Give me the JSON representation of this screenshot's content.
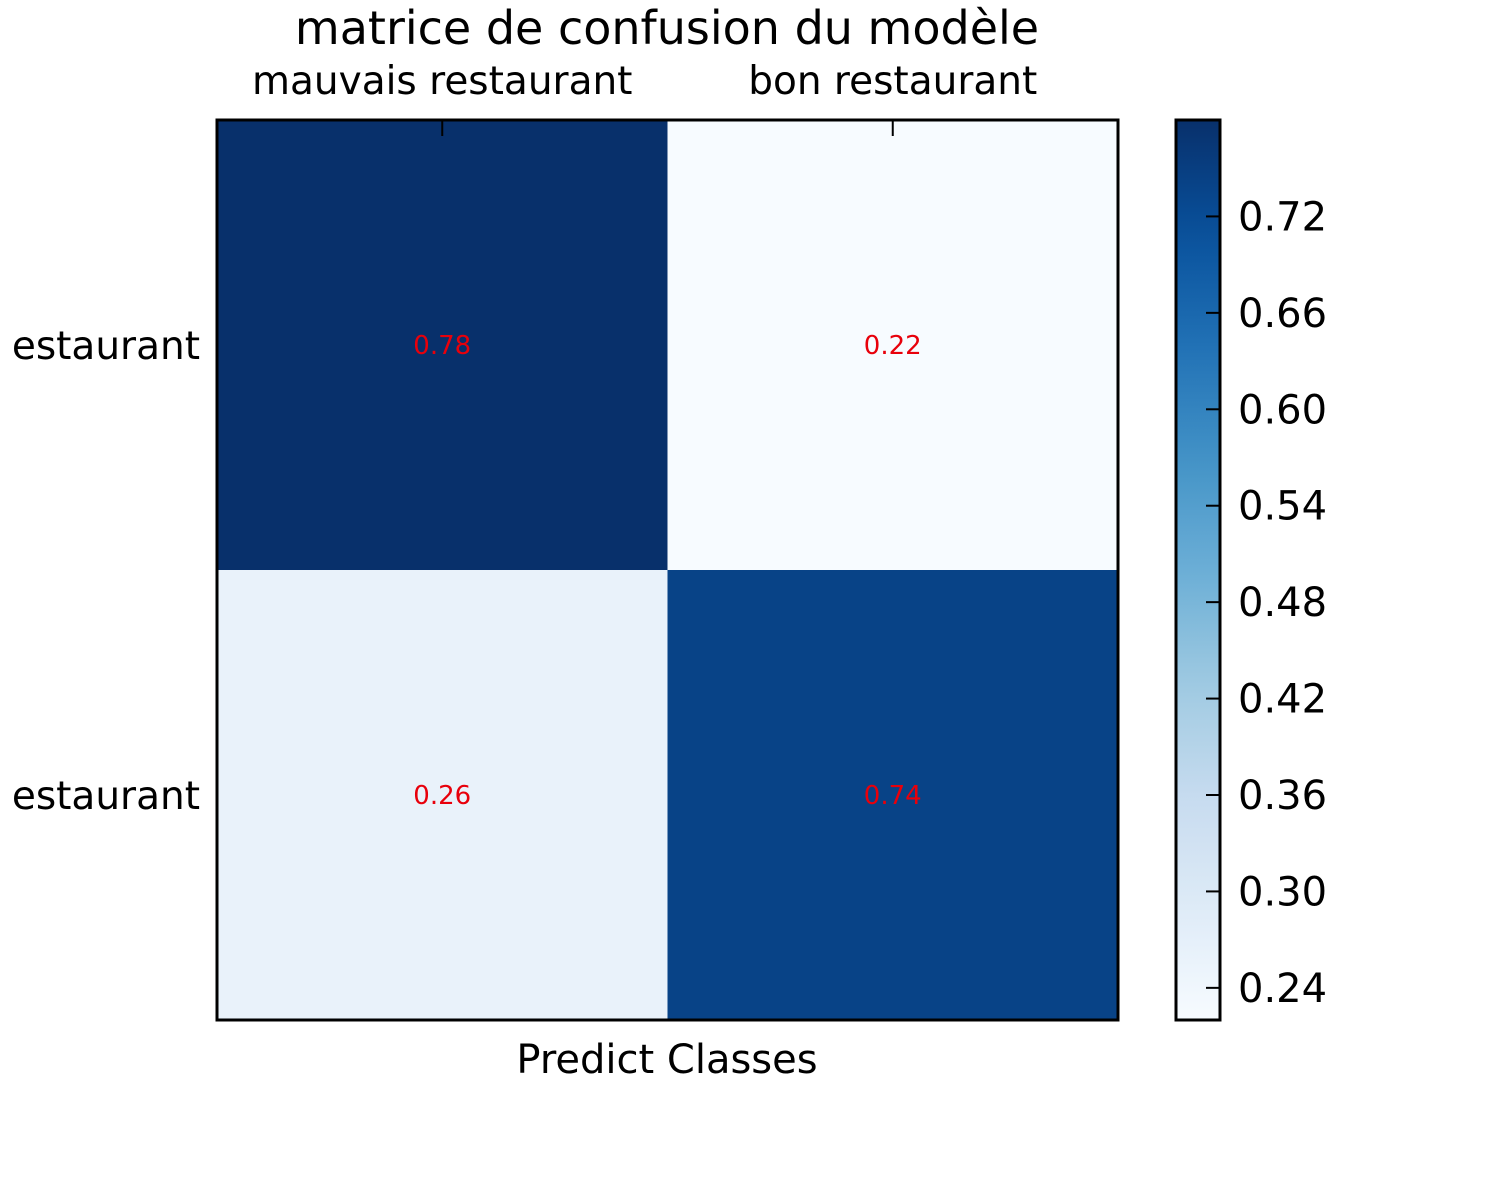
{
  "chart_data": {
    "type": "heatmap",
    "title": "matrice de confusion du modèle",
    "xlabel": "Predict Classes",
    "ylabel": "",
    "x_categories": [
      "mauvais restaurant",
      "bon restaurant"
    ],
    "y_categories": [
      "mauvais restaurant",
      "bon restaurant"
    ],
    "y_tick_labels_visible": [
      "estaurant",
      "estaurant"
    ],
    "values": [
      [
        0.78,
        0.22
      ],
      [
        0.26,
        0.74
      ]
    ],
    "value_labels": [
      [
        "0.78",
        "0.22"
      ],
      [
        "0.26",
        "0.74"
      ]
    ],
    "colormap": "Blues",
    "value_label_color": "#e8000b",
    "colorbar": {
      "range": [
        0.22,
        0.78
      ],
      "ticks": [
        0.24,
        0.3,
        0.36,
        0.42,
        0.48,
        0.54,
        0.6,
        0.66,
        0.72
      ],
      "tick_labels": [
        "0.24",
        "0.30",
        "0.36",
        "0.42",
        "0.48",
        "0.54",
        "0.60",
        "0.66",
        "0.72"
      ]
    },
    "grid": false
  }
}
